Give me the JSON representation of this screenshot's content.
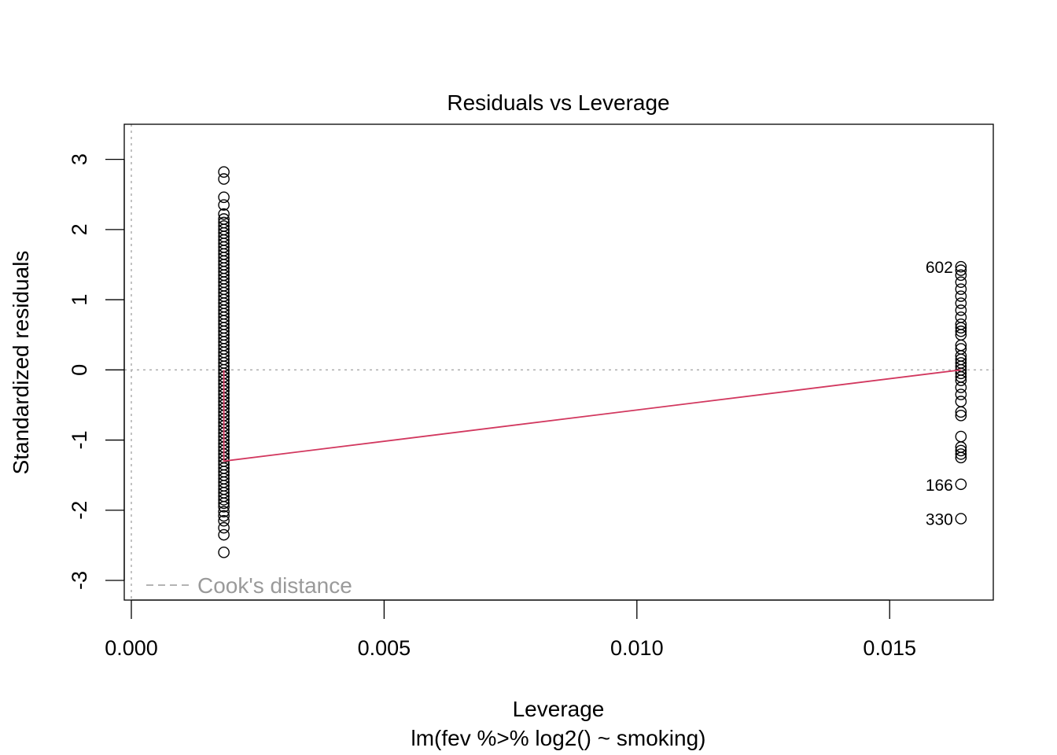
{
  "chart_data": {
    "type": "scatter",
    "title": "Residuals vs Leverage",
    "xlabel": "Leverage",
    "subtitle": "lm(fev %>% log2() ~ smoking)",
    "ylabel": "Standardized residuals",
    "xlim": [
      -0.00014,
      0.01705
    ],
    "ylim": [
      -3.28,
      3.5
    ],
    "x_ticks": [
      0.0,
      0.005,
      0.01,
      0.015
    ],
    "x_tick_labels": [
      "0.000",
      "0.005",
      "0.010",
      "0.015"
    ],
    "y_ticks": [
      -3,
      -2,
      -1,
      0,
      1,
      2,
      3
    ],
    "y_tick_labels": [
      "-3",
      "-2",
      "-1",
      "0",
      "1",
      "2",
      "3"
    ],
    "reference_lines": {
      "x": 0,
      "y": 0
    },
    "series": [
      {
        "x": 0.00183,
        "y": [
          2.82,
          2.72,
          2.46,
          2.35,
          2.22,
          2.15,
          2.1,
          2.05,
          2.0,
          1.95,
          1.9,
          1.85,
          1.8,
          1.75,
          1.7,
          1.65,
          1.6,
          1.55,
          1.5,
          1.45,
          1.4,
          1.35,
          1.3,
          1.25,
          1.2,
          1.15,
          1.1,
          1.05,
          1.0,
          0.95,
          0.9,
          0.85,
          0.8,
          0.75,
          0.7,
          0.65,
          0.6,
          0.55,
          0.5,
          0.45,
          0.4,
          0.35,
          0.3,
          0.25,
          0.2,
          0.15,
          0.1,
          0.05,
          0.0,
          -0.05,
          -0.1,
          -0.15,
          -0.2,
          -0.25,
          -0.3,
          -0.35,
          -0.4,
          -0.45,
          -0.5,
          -0.55,
          -0.6,
          -0.65,
          -0.7,
          -0.75,
          -0.8,
          -0.85,
          -0.9,
          -0.95,
          -1.0,
          -1.05,
          -1.1,
          -1.15,
          -1.2,
          -1.25,
          -1.3,
          -1.35,
          -1.4,
          -1.45,
          -1.5,
          -1.55,
          -1.6,
          -1.65,
          -1.7,
          -1.75,
          -1.8,
          -1.85,
          -1.9,
          -1.95,
          -2.02,
          -2.08,
          -2.15,
          -2.25,
          -2.35,
          -2.6
        ]
      },
      {
        "x": 0.01641,
        "y": [
          1.47,
          1.42,
          1.35,
          1.25,
          1.15,
          1.05,
          0.95,
          0.85,
          0.75,
          0.65,
          0.6,
          0.55,
          0.5,
          0.35,
          0.3,
          0.2,
          0.15,
          0.1,
          0.05,
          0.0,
          -0.05,
          -0.1,
          -0.15,
          -0.25,
          -0.35,
          -0.45,
          -0.6,
          -0.65,
          -0.95,
          -1.1,
          -1.15,
          -1.2,
          -1.25,
          -1.63,
          -2.12
        ]
      }
    ],
    "smooth_line": {
      "x": [
        0.00183,
        0.00183,
        0.01641
      ],
      "y": [
        0.0,
        -1.3,
        0.0
      ]
    },
    "point_labels": [
      {
        "label": "602",
        "x": 0.01641,
        "y": 1.47
      },
      {
        "label": "166",
        "x": 0.01641,
        "y": -1.63
      },
      {
        "label": "330",
        "x": 0.01641,
        "y": -2.12
      }
    ],
    "legend": {
      "position": "bottom-left",
      "entries": [
        "Cook's distance"
      ]
    },
    "colors": {
      "smooth": "#d2385f",
      "reference": "#a8a8a8",
      "legend": "#9a9a9a"
    }
  }
}
